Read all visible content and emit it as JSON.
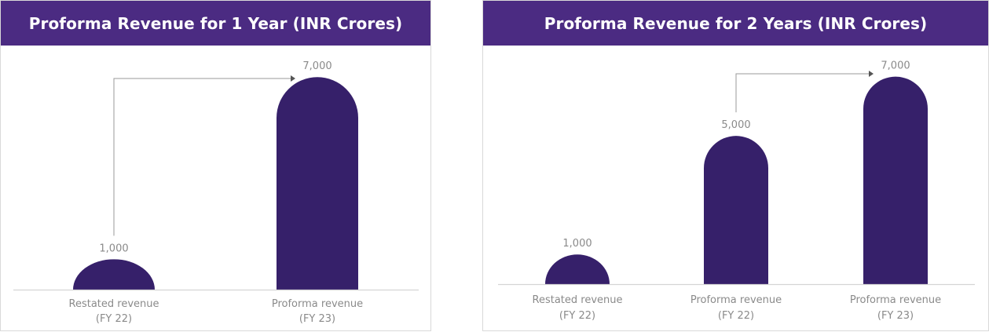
{
  "colors": {
    "header_bg": "#4b2b82",
    "bar": "#36206a",
    "axis": "#d4d4d4",
    "connector": "#9a9a9a",
    "text": "#8a8a8a"
  },
  "chart_data": [
    {
      "type": "bar",
      "title": "Proforma Revenue for 1 Year (INR Crores)",
      "categories": [
        [
          "Restated revenue",
          "(FY 22)"
        ],
        [
          "Proforma revenue",
          "(FY 23)"
        ]
      ],
      "values": [
        1000,
        7000
      ],
      "value_labels": [
        "1,000",
        "7,000"
      ],
      "ylim": [
        0,
        7600
      ],
      "grid": false,
      "connector": {
        "from": 0,
        "to": 1
      }
    },
    {
      "type": "bar",
      "title": "Proforma Revenue for 2 Years (INR Crores)",
      "categories": [
        [
          "Restated revenue",
          "(FY 22)"
        ],
        [
          "Proforma revenue",
          "(FY 22)"
        ],
        [
          "Proforma revenue",
          "(FY 23)"
        ]
      ],
      "values": [
        1000,
        5000,
        7000
      ],
      "value_labels": [
        "1,000",
        "5,000",
        "7,000"
      ],
      "ylim": [
        0,
        7600
      ],
      "grid": false,
      "connector": {
        "from": 1,
        "to": 2
      }
    }
  ]
}
